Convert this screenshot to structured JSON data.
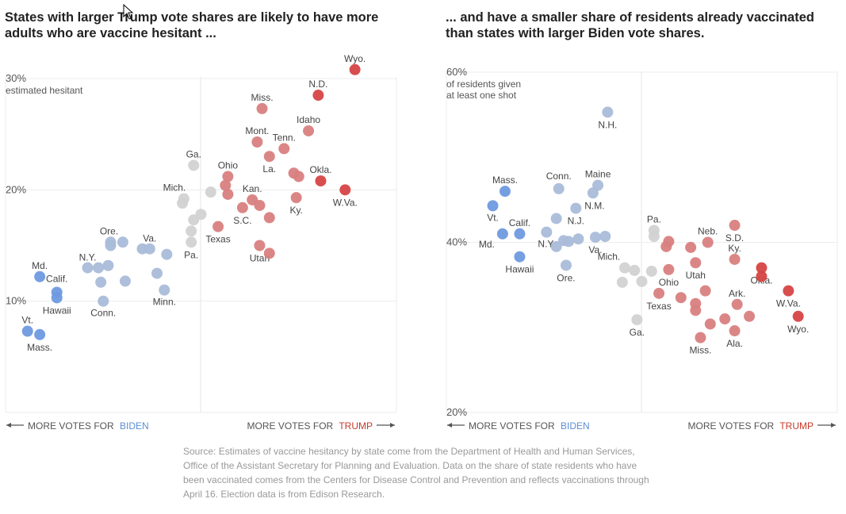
{
  "charts": [
    {
      "title": "States with larger Trump vote shares are likely to have more adults who are vaccine hesitant ...",
      "y_axis_note": "estimated hesitant",
      "axis_left_label": "MORE VOTES FOR",
      "axis_left_party": "BIDEN",
      "axis_right_label": "MORE VOTES FOR",
      "axis_right_party": "TRUMP"
    },
    {
      "title": "... and have a smaller share of residents already vaccinated than states with larger Biden vote shares.",
      "y_axis_note": "of residents given at least one shot",
      "axis_left_label": "MORE VOTES FOR",
      "axis_left_party": "BIDEN",
      "axis_right_label": "MORE VOTES FOR",
      "axis_right_party": "TRUMP"
    }
  ],
  "source": "Source: Estimates of vaccine hesitancy by state come from the Department of Health and Human Services, Office of the Assistant Secretary for Planning and Evaluation. Data on the share of state residents who have been vaccinated comes from the Centers for Disease Control and Prevention and reflects vaccinations through April 16. Election data is from Edison Research.",
  "colors": {
    "biden_strong": "#6f9ae0",
    "biden_lean": "#a9bcd9",
    "tossup": "#d2d2d2",
    "trump_lean": "#d98080",
    "trump_strong": "#d64545",
    "biden_text": "#5b8fd6",
    "trump_text": "#c8392b"
  },
  "chart_data": [
    {
      "type": "scatter",
      "title": "States with larger Trump vote shares are likely to have more adults who are vaccine hesitant ...",
      "xlabel": "",
      "ylabel": "estimated hesitant",
      "x_unit": "Trump margin (percentage points)",
      "xlim": [
        -40,
        40
      ],
      "ylim": [
        0,
        30
      ],
      "yticks": [
        "10%",
        "20%",
        "30%"
      ],
      "ytick_values": [
        10,
        20,
        30
      ],
      "grid": true,
      "points": [
        {
          "state": "Vt.",
          "label": "Vt.",
          "x": -35.5,
          "y": 7.3,
          "cat": "biden_strong"
        },
        {
          "state": "Mass.",
          "label": "Mass.",
          "x": -33,
          "y": 7.0,
          "cat": "biden_strong"
        },
        {
          "state": "Md.",
          "label": "Md.",
          "x": -33,
          "y": 12.2,
          "cat": "biden_strong"
        },
        {
          "state": "Calif.",
          "label": "Calif.",
          "x": -29.5,
          "y": 10.8,
          "cat": "biden_strong"
        },
        {
          "state": "Hawaii",
          "label": "Hawaii",
          "x": -29.5,
          "y": 10.3,
          "cat": "biden_strong"
        },
        {
          "state": "N.Y.",
          "label": "N.Y.",
          "x": -23.2,
          "y": 13.0,
          "cat": "biden_lean"
        },
        {
          "state": "Conn.",
          "label": "Conn.",
          "x": -20,
          "y": 10.0,
          "cat": "biden_lean"
        },
        {
          "state": "Ore.",
          "label": "Ore.",
          "x": -18.5,
          "y": 15.3,
          "cat": "biden_lean"
        },
        {
          "state": "Va.",
          "label": "Va.",
          "x": -10.5,
          "y": 14.7,
          "cat": "biden_lean"
        },
        {
          "state": "Minn.",
          "label": "Minn.",
          "x": -7.5,
          "y": 11.0,
          "cat": "biden_lean"
        },
        {
          "state": "",
          "label": "",
          "x": -21,
          "y": 13.0,
          "cat": "biden_lean"
        },
        {
          "state": "",
          "label": "",
          "x": -19,
          "y": 13.2,
          "cat": "biden_lean"
        },
        {
          "state": "",
          "label": "",
          "x": -20.5,
          "y": 11.7,
          "cat": "biden_lean"
        },
        {
          "state": "",
          "label": "",
          "x": -18.5,
          "y": 15.0,
          "cat": "biden_lean"
        },
        {
          "state": "",
          "label": "",
          "x": -16,
          "y": 15.3,
          "cat": "biden_lean"
        },
        {
          "state": "",
          "label": "",
          "x": -15.5,
          "y": 11.8,
          "cat": "biden_lean"
        },
        {
          "state": "",
          "label": "",
          "x": -12,
          "y": 14.7,
          "cat": "biden_lean"
        },
        {
          "state": "",
          "label": "",
          "x": -7,
          "y": 14.2,
          "cat": "biden_lean"
        },
        {
          "state": "",
          "label": "",
          "x": -9,
          "y": 12.5,
          "cat": "biden_lean"
        },
        {
          "state": "Ga.",
          "label": "Ga.",
          "x": -1.5,
          "y": 22.2,
          "cat": "tossup"
        },
        {
          "state": "Mich.",
          "label": "Mich.",
          "x": -3.5,
          "y": 19.2,
          "cat": "tossup"
        },
        {
          "state": "Pa.",
          "label": "Pa.",
          "x": -2,
          "y": 15.3,
          "cat": "tossup"
        },
        {
          "state": "",
          "label": "",
          "x": -3.8,
          "y": 18.8,
          "cat": "tossup"
        },
        {
          "state": "",
          "label": "",
          "x": -1.5,
          "y": 17.3,
          "cat": "tossup"
        },
        {
          "state": "",
          "label": "",
          "x": -2,
          "y": 16.3,
          "cat": "tossup"
        },
        {
          "state": "",
          "label": "",
          "x": 0,
          "y": 17.8,
          "cat": "tossup"
        },
        {
          "state": "",
          "label": "",
          "x": 2,
          "y": 19.8,
          "cat": "tossup"
        },
        {
          "state": "Texas",
          "label": "Texas",
          "x": 3.5,
          "y": 16.7,
          "cat": "trump_lean"
        },
        {
          "state": "Ohio",
          "label": "Ohio",
          "x": 5.5,
          "y": 21.2,
          "cat": "trump_lean"
        },
        {
          "state": "",
          "label": "",
          "x": 5,
          "y": 20.4,
          "cat": "trump_lean"
        },
        {
          "state": "",
          "label": "",
          "x": 5.5,
          "y": 19.6,
          "cat": "trump_lean"
        },
        {
          "state": "Kan.",
          "label": "Kan.",
          "x": 10.5,
          "y": 19.1,
          "cat": "trump_lean"
        },
        {
          "state": "S.C.",
          "label": "S.C.",
          "x": 8.5,
          "y": 18.4,
          "cat": "trump_lean"
        },
        {
          "state": "",
          "label": "",
          "x": 12,
          "y": 18.6,
          "cat": "trump_lean"
        },
        {
          "state": "",
          "label": "",
          "x": 14,
          "y": 17.5,
          "cat": "trump_lean"
        },
        {
          "state": "Utah",
          "label": "Utah",
          "x": 12,
          "y": 15.0,
          "cat": "trump_lean"
        },
        {
          "state": "",
          "label": "",
          "x": 14,
          "y": 14.3,
          "cat": "trump_lean"
        },
        {
          "state": "Mont.",
          "label": "Mont.",
          "x": 11.5,
          "y": 24.3,
          "cat": "trump_lean"
        },
        {
          "state": "La.",
          "label": "La.",
          "x": 14,
          "y": 23.0,
          "cat": "trump_lean"
        },
        {
          "state": "Tenn.",
          "label": "Tenn.",
          "x": 17,
          "y": 23.7,
          "cat": "trump_lean"
        },
        {
          "state": "Miss.",
          "label": "Miss.",
          "x": 12.5,
          "y": 27.3,
          "cat": "trump_lean"
        },
        {
          "state": "Idaho",
          "label": "Idaho",
          "x": 22,
          "y": 25.3,
          "cat": "trump_lean"
        },
        {
          "state": "",
          "label": "",
          "x": 19,
          "y": 21.5,
          "cat": "trump_lean"
        },
        {
          "state": "",
          "label": "",
          "x": 20,
          "y": 21.2,
          "cat": "trump_lean"
        },
        {
          "state": "Ky.",
          "label": "Ky.",
          "x": 19.5,
          "y": 19.3,
          "cat": "trump_lean"
        },
        {
          "state": "Okla.",
          "label": "Okla.",
          "x": 24.5,
          "y": 20.8,
          "cat": "trump_strong"
        },
        {
          "state": "N.D.",
          "label": "N.D.",
          "x": 24,
          "y": 28.5,
          "cat": "trump_strong"
        },
        {
          "state": "W.Va.",
          "label": "W.Va.",
          "x": 29.5,
          "y": 20.0,
          "cat": "trump_strong"
        },
        {
          "state": "Wyo.",
          "label": "Wyo.",
          "x": 31.5,
          "y": 30.8,
          "cat": "trump_strong"
        }
      ]
    },
    {
      "type": "scatter",
      "title": "... and have a smaller share of residents already vaccinated than states with larger Biden vote shares.",
      "xlabel": "",
      "ylabel": "of residents given at least one shot",
      "x_unit": "Trump margin (percentage points)",
      "xlim": [
        -40,
        40
      ],
      "ylim": [
        20,
        60
      ],
      "yticks": [
        "20%",
        "40%",
        "60%"
      ],
      "ytick_values": [
        20,
        40,
        60
      ],
      "grid": true,
      "points": [
        {
          "state": "Mass.",
          "label": "Mass.",
          "x": -28,
          "y": 46.0,
          "cat": "biden_strong"
        },
        {
          "state": "Vt.",
          "label": "Vt.",
          "x": -30.5,
          "y": 44.3,
          "cat": "biden_strong"
        },
        {
          "state": "Calif.",
          "label": "Calif.",
          "x": -25,
          "y": 41.0,
          "cat": "biden_strong"
        },
        {
          "state": "Md.",
          "label": "Md.",
          "x": -28.5,
          "y": 41.0,
          "cat": "biden_strong"
        },
        {
          "state": "Hawaii",
          "label": "Hawaii",
          "x": -25,
          "y": 38.3,
          "cat": "biden_strong"
        },
        {
          "state": "N.H.",
          "label": "N.H.",
          "x": -7,
          "y": 55.3,
          "cat": "biden_lean"
        },
        {
          "state": "Conn.",
          "label": "Conn.",
          "x": -17,
          "y": 46.3,
          "cat": "biden_lean"
        },
        {
          "state": "Maine",
          "label": "Maine",
          "x": -9,
          "y": 46.7,
          "cat": "biden_lean"
        },
        {
          "state": "N.M.",
          "label": "N.M.",
          "x": -10,
          "y": 45.8,
          "cat": "biden_lean"
        },
        {
          "state": "N.J.",
          "label": "N.J.",
          "x": -13.5,
          "y": 44.0,
          "cat": "biden_lean"
        },
        {
          "state": "",
          "label": "",
          "x": -17.5,
          "y": 42.8,
          "cat": "biden_lean"
        },
        {
          "state": "N.Y.",
          "label": "N.Y.",
          "x": -19.5,
          "y": 41.2,
          "cat": "biden_lean"
        },
        {
          "state": "",
          "label": "",
          "x": -17.5,
          "y": 39.5,
          "cat": "biden_lean"
        },
        {
          "state": "",
          "label": "",
          "x": -16,
          "y": 40.2,
          "cat": "biden_lean"
        },
        {
          "state": "",
          "label": "",
          "x": -15,
          "y": 40.1,
          "cat": "biden_lean"
        },
        {
          "state": "",
          "label": "",
          "x": -13,
          "y": 40.4,
          "cat": "biden_lean"
        },
        {
          "state": "Va.",
          "label": "Va.",
          "x": -9.5,
          "y": 40.6,
          "cat": "biden_lean"
        },
        {
          "state": "",
          "label": "",
          "x": -7.5,
          "y": 40.7,
          "cat": "biden_lean"
        },
        {
          "state": "Ore.",
          "label": "Ore.",
          "x": -15.5,
          "y": 37.3,
          "cat": "biden_lean"
        },
        {
          "state": "Pa.",
          "label": "Pa.",
          "x": 2.5,
          "y": 41.4,
          "cat": "tossup"
        },
        {
          "state": "",
          "label": "",
          "x": 2.5,
          "y": 40.7,
          "cat": "tossup"
        },
        {
          "state": "Mich.",
          "label": "Mich.",
          "x": -3.5,
          "y": 37.0,
          "cat": "tossup"
        },
        {
          "state": "",
          "label": "",
          "x": -1.5,
          "y": 36.7,
          "cat": "tossup"
        },
        {
          "state": "",
          "label": "",
          "x": -4,
          "y": 35.3,
          "cat": "tossup"
        },
        {
          "state": "",
          "label": "",
          "x": 0,
          "y": 35.4,
          "cat": "tossup"
        },
        {
          "state": "",
          "label": "",
          "x": 2,
          "y": 36.6,
          "cat": "tossup"
        },
        {
          "state": "Ga.",
          "label": "Ga.",
          "x": -1,
          "y": 30.9,
          "cat": "tossup"
        },
        {
          "state": "Ohio",
          "label": "Ohio",
          "x": 5.5,
          "y": 36.8,
          "cat": "trump_lean"
        },
        {
          "state": "",
          "label": "",
          "x": 5,
          "y": 39.5,
          "cat": "trump_lean"
        },
        {
          "state": "",
          "label": "",
          "x": 5.5,
          "y": 40.1,
          "cat": "trump_lean"
        },
        {
          "state": "Texas",
          "label": "Texas",
          "x": 3.5,
          "y": 34.0,
          "cat": "trump_lean"
        },
        {
          "state": "",
          "label": "",
          "x": 8,
          "y": 33.5,
          "cat": "trump_lean"
        },
        {
          "state": "",
          "label": "",
          "x": 10,
          "y": 39.4,
          "cat": "trump_lean"
        },
        {
          "state": "Neb.",
          "label": "Neb.",
          "x": 13.5,
          "y": 40.0,
          "cat": "trump_lean"
        },
        {
          "state": "Utah",
          "label": "Utah",
          "x": 11,
          "y": 37.6,
          "cat": "trump_lean"
        },
        {
          "state": "",
          "label": "",
          "x": 13,
          "y": 34.3,
          "cat": "trump_lean"
        },
        {
          "state": "",
          "label": "",
          "x": 11,
          "y": 32.8,
          "cat": "trump_lean"
        },
        {
          "state": "",
          "label": "",
          "x": 11,
          "y": 32.0,
          "cat": "trump_lean"
        },
        {
          "state": "",
          "label": "",
          "x": 14,
          "y": 30.4,
          "cat": "trump_lean"
        },
        {
          "state": "Miss.",
          "label": "Miss.",
          "x": 12,
          "y": 28.8,
          "cat": "trump_lean"
        },
        {
          "state": "",
          "label": "",
          "x": 17,
          "y": 31.0,
          "cat": "trump_lean"
        },
        {
          "state": "Ark.",
          "label": "Ark.",
          "x": 19.5,
          "y": 32.7,
          "cat": "trump_lean"
        },
        {
          "state": "",
          "label": "",
          "x": 22,
          "y": 31.3,
          "cat": "trump_lean"
        },
        {
          "state": "Ala.",
          "label": "Ala.",
          "x": 19,
          "y": 29.6,
          "cat": "trump_lean"
        },
        {
          "state": "S.D.",
          "label": "S.D.",
          "x": 19,
          "y": 42.0,
          "cat": "trump_lean"
        },
        {
          "state": "Ky.",
          "label": "Ky.",
          "x": 19,
          "y": 38.0,
          "cat": "trump_lean"
        },
        {
          "state": "Okla.",
          "label": "Okla.",
          "x": 24.5,
          "y": 37.0,
          "cat": "trump_strong"
        },
        {
          "state": "",
          "label": "",
          "x": 24.5,
          "y": 36.0,
          "cat": "trump_strong"
        },
        {
          "state": "W.Va.",
          "label": "W.Va.",
          "x": 30,
          "y": 34.3,
          "cat": "trump_strong"
        },
        {
          "state": "Wyo.",
          "label": "Wyo.",
          "x": 32,
          "y": 31.3,
          "cat": "trump_strong"
        }
      ]
    }
  ]
}
